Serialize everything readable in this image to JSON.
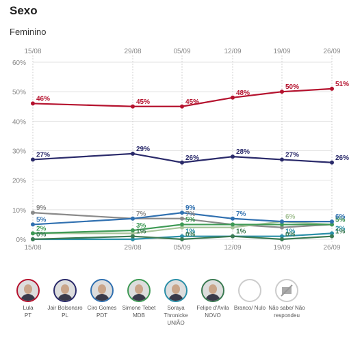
{
  "header": {
    "title": "Sexo",
    "subtitle": "Feminino"
  },
  "chart_data": {
    "type": "line",
    "x": [
      "15/08",
      "29/08",
      "05/09",
      "12/09",
      "19/09",
      "26/09"
    ],
    "y_ticks": [
      "0%",
      "10%",
      "20%",
      "30%",
      "40%",
      "50%",
      "60%"
    ],
    "ylim": [
      0,
      60
    ],
    "grid": true,
    "series": [
      {
        "name": "Lula PT",
        "color": "#b5122e",
        "values": [
          46,
          45,
          45,
          48,
          50,
          51
        ],
        "labels": [
          "46%",
          "45%",
          "45%",
          "48%",
          "50%",
          "51%"
        ]
      },
      {
        "name": "Jair Bolsonaro PL",
        "color": "#2a2a6a",
        "values": [
          27,
          29,
          26,
          28,
          27,
          26
        ],
        "labels": [
          "27%",
          "29%",
          "26%",
          "28%",
          "27%",
          "26%"
        ]
      },
      {
        "name": "Ciro Gomes PDT",
        "color": "#3070b0",
        "values": [
          5,
          7,
          9,
          7,
          6,
          6
        ],
        "labels": [
          "5%",
          "",
          "9%",
          "7%",
          "",
          "6%"
        ]
      },
      {
        "name": "Simone Tebet MDB",
        "color": "#3e9a55",
        "values": [
          2,
          3,
          5,
          5,
          5,
          5
        ],
        "labels": [
          "2%",
          "3%",
          "5%",
          "",
          "",
          "5%"
        ]
      },
      {
        "name": "Soraya Thronicke UNIÃO",
        "color": "#2a8fa8",
        "values": [
          0,
          0,
          1,
          1,
          1,
          2
        ],
        "labels": [
          "",
          "",
          "1%",
          "",
          "1%",
          "2%"
        ]
      },
      {
        "name": "Felipe d'Avila NOVO",
        "color": "#3b7a52",
        "values": [
          0,
          1,
          0,
          1,
          0,
          1
        ],
        "labels": [
          "0%",
          "1%",
          "0%",
          "1%",
          "0%",
          "1%"
        ]
      },
      {
        "name": "Branco/ Nulo",
        "color": "#8a8a8a",
        "values": [
          9,
          7,
          7,
          5,
          4,
          5
        ],
        "labels": [
          "9%",
          "7%",
          "7%",
          "",
          "",
          "5%"
        ]
      },
      {
        "name": "Não sabe/ Não respondeu",
        "color": "#a8c49a",
        "values": [
          2,
          2,
          4,
          4,
          6,
          5
        ],
        "labels": [
          "",
          "",
          "",
          "",
          "6%",
          ""
        ]
      }
    ]
  },
  "legend": [
    {
      "line1": "Lula",
      "line2": "PT",
      "line3": "",
      "ring": "#b5122e",
      "kind": "photo"
    },
    {
      "line1": "Jair Bolsonaro",
      "line2": "PL",
      "line3": "",
      "ring": "#2a2a6a",
      "kind": "photo"
    },
    {
      "line1": "Ciro Gomes",
      "line2": "PDT",
      "line3": "",
      "ring": "#3070b0",
      "kind": "photo"
    },
    {
      "line1": "Simone Tebet",
      "line2": "MDB",
      "line3": "",
      "ring": "#3e9a55",
      "kind": "photo"
    },
    {
      "line1": "Soraya",
      "line2": "Thronicke",
      "line3": "UNIÃO",
      "ring": "#2a8fa8",
      "kind": "photo"
    },
    {
      "line1": "Felipe d'Avila",
      "line2": "NOVO",
      "line3": "",
      "ring": "#3b7a52",
      "kind": "photo"
    },
    {
      "line1": "Branco/ Nulo",
      "line2": "",
      "line3": "",
      "ring": "#cccccc",
      "kind": "blank"
    },
    {
      "line1": "Não sabe/ Não",
      "line2": "respondeu",
      "line3": "",
      "ring": "#cccccc",
      "kind": "cross"
    }
  ]
}
